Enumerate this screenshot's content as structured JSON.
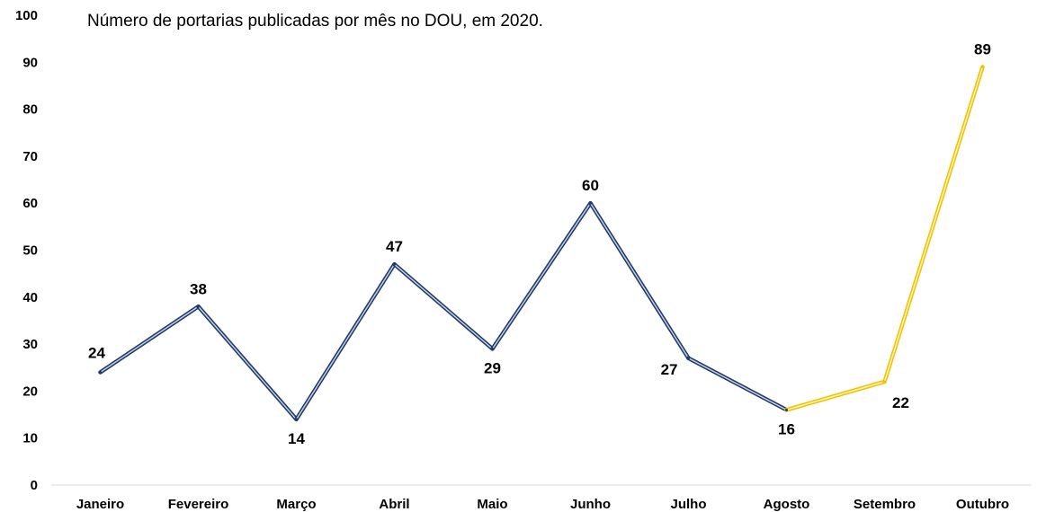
{
  "chart_data": {
    "type": "line",
    "title": "Número de portarias publicadas por mês no DOU, em 2020.",
    "xlabel": "",
    "ylabel": "",
    "categories": [
      "Janeiro",
      "Fevereiro",
      "Março",
      "Abril",
      "Maio",
      "Junho",
      "Julho",
      "Agosto",
      "Setembro",
      "Outubro"
    ],
    "series": [
      {
        "values": [
          24,
          38,
          14,
          47,
          29,
          60,
          27,
          16,
          22,
          89
        ]
      }
    ],
    "segment_colors": {
      "primary": "#1f3a6b",
      "highlight": "#f2c200",
      "highlight_from_index": 7
    },
    "ylim": [
      0,
      100
    ],
    "yticks": [
      0,
      10,
      20,
      30,
      40,
      50,
      60,
      70,
      80,
      90,
      100
    ],
    "label_positions": [
      "above",
      "above",
      "below",
      "above",
      "below",
      "above",
      "left",
      "below",
      "below",
      "above"
    ],
    "grid": false,
    "legend": "none"
  }
}
